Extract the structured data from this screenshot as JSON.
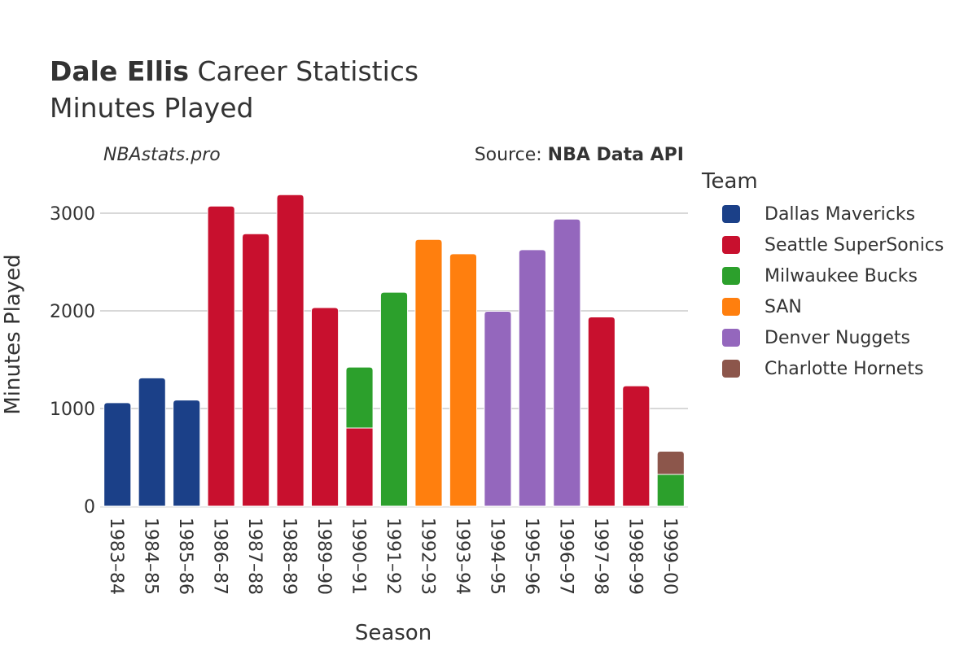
{
  "header": {
    "player_name": "Dale Ellis",
    "title_suffix": "Career Statistics",
    "subtitle": "Minutes Played",
    "watermark": "NBAstats.pro",
    "source_prefix": "Source: ",
    "source_name": "NBA Data API"
  },
  "legend": {
    "title": "Team",
    "items": [
      {
        "name": "Dallas Mavericks",
        "color": "#1b4088"
      },
      {
        "name": "Seattle SuperSonics",
        "color": "#c8102e"
      },
      {
        "name": "Milwaukee Bucks",
        "color": "#2ca02c"
      },
      {
        "name": "SAN",
        "color": "#ff7f0e"
      },
      {
        "name": "Denver Nuggets",
        "color": "#9467bd"
      },
      {
        "name": "Charlotte Hornets",
        "color": "#8c564b"
      }
    ]
  },
  "chart_data": {
    "type": "bar",
    "stacked": true,
    "xlabel": "Season",
    "ylabel": "Minutes Played",
    "ylim": [
      0,
      3450
    ],
    "yticks": [
      0,
      1000,
      2000,
      3000
    ],
    "grid": true,
    "legend_position": "right",
    "categories": [
      "1983–84",
      "1984–85",
      "1985–86",
      "1986–87",
      "1987–88",
      "1988–89",
      "1989–90",
      "1990–91",
      "1991–92",
      "1992–93",
      "1993–94",
      "1994–95",
      "1995–96",
      "1996–97",
      "1997–98",
      "1998–99",
      "1999–00"
    ],
    "series": [
      {
        "name": "Seattle SuperSonics",
        "color": "#c8102e",
        "values": [
          0,
          0,
          0,
          3073,
          2790,
          3190,
          2033,
          800,
          0,
          0,
          0,
          0,
          0,
          0,
          1938,
          1232,
          0
        ]
      },
      {
        "name": "Milwaukee Bucks",
        "color": "#2ca02c",
        "values": [
          0,
          0,
          0,
          0,
          0,
          0,
          0,
          624,
          2191,
          0,
          0,
          0,
          0,
          0,
          0,
          0,
          325
        ]
      },
      {
        "name": "Dallas Mavericks",
        "color": "#1b4088",
        "values": [
          1059,
          1314,
          1086,
          0,
          0,
          0,
          0,
          0,
          0,
          0,
          0,
          0,
          0,
          0,
          0,
          0,
          0
        ]
      },
      {
        "name": "SAN",
        "color": "#ff7f0e",
        "values": [
          0,
          0,
          0,
          0,
          0,
          0,
          0,
          0,
          0,
          2731,
          2584,
          0,
          0,
          0,
          0,
          0,
          0
        ]
      },
      {
        "name": "Denver Nuggets",
        "color": "#9467bd",
        "values": [
          0,
          0,
          0,
          0,
          0,
          0,
          0,
          0,
          0,
          0,
          0,
          1996,
          2626,
          2940,
          0,
          0,
          0
        ]
      },
      {
        "name": "Charlotte Hornets",
        "color": "#8c564b",
        "values": [
          0,
          0,
          0,
          0,
          0,
          0,
          0,
          0,
          0,
          0,
          0,
          0,
          0,
          0,
          0,
          0,
          238
        ]
      }
    ]
  }
}
